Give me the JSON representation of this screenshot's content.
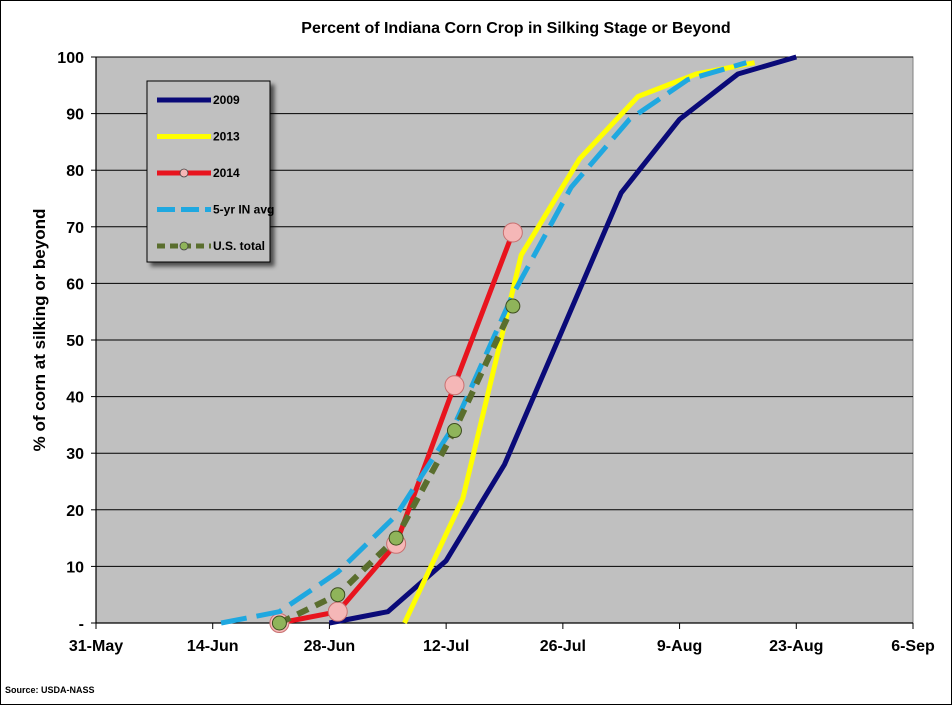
{
  "chart_data": {
    "type": "line",
    "title": "Percent of Indiana Corn Crop in Silking Stage or Beyond",
    "xlabel": "",
    "ylabel": "% of corn at silking or beyond",
    "x_ticks": [
      "31-May",
      "14-Jun",
      "28-Jun",
      "12-Jul",
      "26-Jul",
      "9-Aug",
      "23-Aug",
      "6-Sep"
    ],
    "y_ticks": [
      "-",
      "10",
      "20",
      "30",
      "40",
      "50",
      "60",
      "70",
      "80",
      "90",
      "100"
    ],
    "x_range_days": [
      0,
      98
    ],
    "ylim": [
      0,
      100
    ],
    "grid": "horizontal",
    "legend_position": "top-left",
    "source": "Source: USDA-NASS",
    "series": [
      {
        "name": "2009",
        "color": "#0a0a78",
        "style": "solid",
        "marker": "none",
        "points": [
          {
            "date": "28-Jun",
            "y": 0
          },
          {
            "date": "5-Jul",
            "y": 2
          },
          {
            "date": "12-Jul",
            "y": 11
          },
          {
            "date": "19-Jul",
            "y": 28
          },
          {
            "date": "26-Jul",
            "y": 52
          },
          {
            "date": "2-Aug",
            "y": 76
          },
          {
            "date": "9-Aug",
            "y": 89
          },
          {
            "date": "16-Aug",
            "y": 97
          },
          {
            "date": "23-Aug",
            "y": 100
          }
        ]
      },
      {
        "name": "2013",
        "color": "#ffff00",
        "style": "solid",
        "marker": "none",
        "points": [
          {
            "date": "7-Jul",
            "y": 0
          },
          {
            "date": "14-Jul",
            "y": 22
          },
          {
            "date": "21-Jul",
            "y": 65
          },
          {
            "date": "28-Jul",
            "y": 82
          },
          {
            "date": "4-Aug",
            "y": 93
          },
          {
            "date": "11-Aug",
            "y": 97
          },
          {
            "date": "18-Aug",
            "y": 99
          }
        ]
      },
      {
        "name": "2014",
        "color": "#e8141e",
        "style": "solid",
        "marker": "circle",
        "marker_color": "#f5b7b7",
        "points": [
          {
            "date": "22-Jun",
            "y": 0
          },
          {
            "date": "29-Jun",
            "y": 2
          },
          {
            "date": "6-Jul",
            "y": 14
          },
          {
            "date": "13-Jul",
            "y": 42
          },
          {
            "date": "20-Jul",
            "y": 69
          }
        ]
      },
      {
        "name": "5-yr IN avg",
        "color": "#1fa8e0",
        "style": "dashed",
        "marker": "none",
        "points": [
          {
            "date": "15-Jun",
            "y": 0
          },
          {
            "date": "22-Jun",
            "y": 2
          },
          {
            "date": "29-Jun",
            "y": 9
          },
          {
            "date": "6-Jul",
            "y": 19
          },
          {
            "date": "13-Jul",
            "y": 35
          },
          {
            "date": "20-Jul",
            "y": 58
          },
          {
            "date": "27-Jul",
            "y": 77
          },
          {
            "date": "3-Aug",
            "y": 89
          },
          {
            "date": "10-Aug",
            "y": 96
          },
          {
            "date": "17-Aug",
            "y": 99
          }
        ]
      },
      {
        "name": "U.S. total",
        "color": "#5a6e2e",
        "style": "dashed",
        "marker": "circle",
        "marker_color": "#8fb45a",
        "points": [
          {
            "date": "22-Jun",
            "y": 0
          },
          {
            "date": "29-Jun",
            "y": 5
          },
          {
            "date": "6-Jul",
            "y": 15
          },
          {
            "date": "13-Jul",
            "y": 34
          },
          {
            "date": "20-Jul",
            "y": 56
          }
        ]
      }
    ]
  }
}
